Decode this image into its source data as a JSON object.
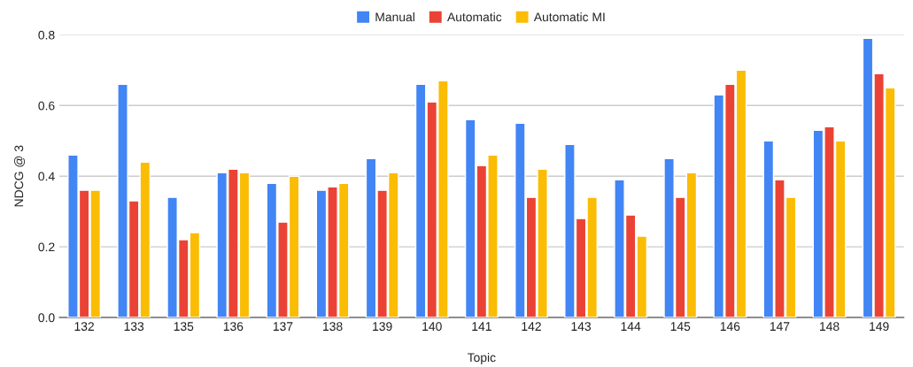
{
  "chart_data": {
    "type": "bar",
    "xlabel": "Topic",
    "ylabel": "NDCG @ 3",
    "categories": [
      "132",
      "133",
      "135",
      "136",
      "137",
      "138",
      "139",
      "140",
      "141",
      "142",
      "143",
      "144",
      "145",
      "146",
      "147",
      "148",
      "149"
    ],
    "series": [
      {
        "name": "Manual",
        "color": "#4285f4",
        "values": [
          0.46,
          0.66,
          0.34,
          0.41,
          0.38,
          0.36,
          0.45,
          0.66,
          0.56,
          0.55,
          0.49,
          0.39,
          0.45,
          0.63,
          0.5,
          0.53,
          0.79
        ]
      },
      {
        "name": "Automatic",
        "color": "#ea4335",
        "values": [
          0.36,
          0.33,
          0.22,
          0.42,
          0.27,
          0.37,
          0.36,
          0.61,
          0.43,
          0.34,
          0.28,
          0.29,
          0.34,
          0.66,
          0.39,
          0.54,
          0.69
        ]
      },
      {
        "name": "Automatic MI",
        "color": "#fbbc04",
        "values": [
          0.36,
          0.44,
          0.24,
          0.41,
          0.4,
          0.38,
          0.41,
          0.67,
          0.46,
          0.42,
          0.34,
          0.23,
          0.41,
          0.7,
          0.34,
          0.5,
          0.65
        ]
      }
    ],
    "ylim": [
      0,
      0.8
    ],
    "yticks": [
      {
        "value": 0,
        "label": "0.0"
      },
      0.2,
      0.4,
      0.6,
      0.8
    ],
    "grid": "y",
    "legend": "top"
  }
}
